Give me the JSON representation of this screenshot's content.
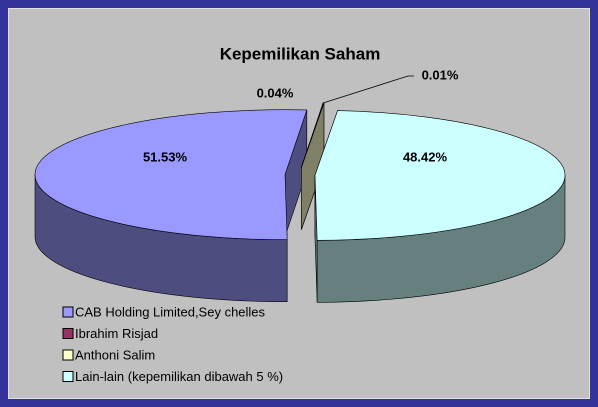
{
  "chart_data": {
    "type": "pie",
    "title": "Kepemilikan Saham",
    "categories": [
      "CAB Holding Limited,Sey chelles",
      "Ibrahim Risjad",
      "Anthoni Salim",
      "Lain-lain (kepemilikan dibawah 5 %)"
    ],
    "values": [
      51.53,
      0.04,
      0.01,
      48.42
    ],
    "value_labels": [
      "51.53%",
      "0.04%",
      "0.01%",
      "48.42%"
    ],
    "colors": [
      "#9999ff",
      "#993366",
      "#ffffcc",
      "#ccffff"
    ],
    "legend": "bottom-left"
  }
}
